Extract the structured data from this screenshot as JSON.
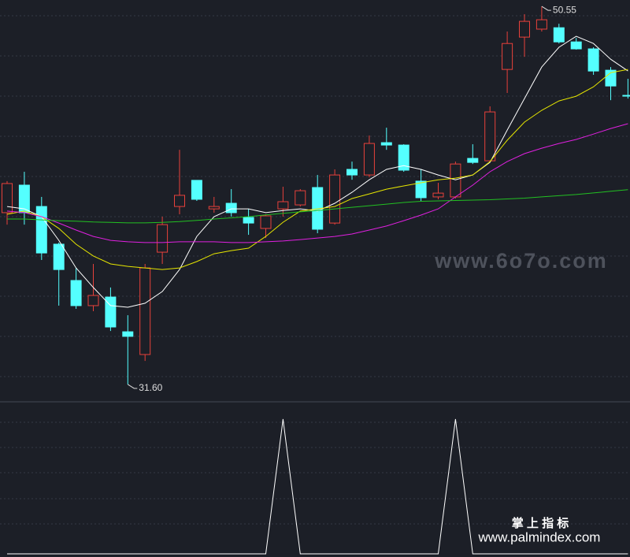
{
  "chart_data": [
    {
      "type": "candlestick",
      "open": [
        40.21,
        41.59,
        40.52,
        38.63,
        36.81,
        35.55,
        35.98,
        34.24,
        33.1,
        38.23,
        40.52,
        41.83,
        40.4,
        40.68,
        39.97,
        39.42,
        40.4,
        40.6,
        41.47,
        39.69,
        42.38,
        42.1,
        43.72,
        43.6,
        41.79,
        41.0,
        41.0,
        42.93,
        42.81,
        47.39,
        49.01,
        49.41,
        49.48,
        48.77,
        48.42,
        47.35,
        46.09
      ],
      "high": [
        41.79,
        42.26,
        41.0,
        38.71,
        37.44,
        37.64,
        36.46,
        35.07,
        37.64,
        40.01,
        43.36,
        41.83,
        41.0,
        41.39,
        40.4,
        40.13,
        41.51,
        41.39,
        42.1,
        42.38,
        42.77,
        44.08,
        44.47,
        43.64,
        42.38,
        41.71,
        42.77,
        43.64,
        45.54,
        49.29,
        50.16,
        50.55,
        49.68,
        48.97,
        48.5,
        47.51,
        46.92
      ],
      "low": [
        39.61,
        39.61,
        37.84,
        35.55,
        35.39,
        35.27,
        34.28,
        31.6,
        32.78,
        37.64,
        40.13,
        40.8,
        40.21,
        40.01,
        39.1,
        38.94,
        40.01,
        40.52,
        39.18,
        39.61,
        41.86,
        41.98,
        43.36,
        42.26,
        40.8,
        40.88,
        40.92,
        42.65,
        42.77,
        46.21,
        48.02,
        49.29,
        48.69,
        48.38,
        47.12,
        45.85,
        45.93
      ],
      "close": [
        41.67,
        40.21,
        38.19,
        37.36,
        35.55,
        36.06,
        34.48,
        34.01,
        37.44,
        39.61,
        41.08,
        40.88,
        40.52,
        40.21,
        39.69,
        40.05,
        40.76,
        41.31,
        39.38,
        42.1,
        42.1,
        43.68,
        43.6,
        42.34,
        40.96,
        41.19,
        42.65,
        42.73,
        45.26,
        48.69,
        49.8,
        49.88,
        48.77,
        48.42,
        47.31,
        46.56,
        46.05
      ],
      "up_color": "#e8413b",
      "down_color": "#54ffff",
      "series": [
        {
          "color": "#ffffff",
          "values": [
            40.52,
            40.4,
            40.01,
            38.82,
            37.44,
            36.46,
            35.55,
            35.47,
            35.67,
            36.26,
            37.36,
            39.02,
            40.01,
            40.4,
            40.4,
            40.21,
            40.32,
            40.4,
            40.29,
            40.68,
            41.23,
            41.86,
            42.38,
            42.57,
            42.38,
            42.1,
            41.86,
            42.1,
            42.73,
            44.35,
            45.93,
            47.51,
            48.5,
            49.05,
            48.69,
            47.9,
            47.31
          ]
        },
        {
          "color": "#e6e600",
          "values": [
            40.13,
            40.29,
            40.01,
            39.42,
            38.63,
            38.04,
            37.64,
            37.52,
            37.44,
            37.36,
            37.44,
            37.76,
            38.15,
            38.31,
            38.43,
            39.02,
            39.73,
            40.29,
            40.4,
            40.52,
            40.92,
            41.15,
            41.39,
            41.55,
            41.71,
            41.86,
            41.94,
            42.1,
            42.77,
            43.84,
            44.75,
            45.34,
            45.81,
            46.05,
            46.52,
            47.23,
            47.39
          ]
        },
        {
          "color": "#e020e0",
          "values": [
            40.29,
            40.21,
            40.01,
            39.69,
            39.34,
            39.02,
            38.82,
            38.75,
            38.71,
            38.71,
            38.75,
            38.75,
            38.75,
            38.71,
            38.71,
            38.75,
            38.79,
            38.86,
            38.94,
            39.02,
            39.14,
            39.34,
            39.54,
            39.81,
            40.09,
            40.4,
            41.0,
            41.59,
            42.26,
            42.77,
            43.17,
            43.44,
            43.68,
            43.88,
            44.15,
            44.43,
            44.67
          ]
        },
        {
          "color": "#22c022",
          "values": [
            39.89,
            39.89,
            39.85,
            39.81,
            39.78,
            39.74,
            39.72,
            39.7,
            39.7,
            39.72,
            39.76,
            39.82,
            39.89,
            39.95,
            40.01,
            40.1,
            40.18,
            40.25,
            40.32,
            40.4,
            40.48,
            40.56,
            40.64,
            40.72,
            40.78,
            40.8,
            40.82,
            40.84,
            40.86,
            40.9,
            40.94,
            41.0,
            41.06,
            41.12,
            41.2,
            41.28,
            41.36
          ]
        }
      ],
      "ylim": [
        30.73,
        50.87
      ],
      "max_label": "50.55",
      "min_label": "31.60",
      "watermark": "www.6o7o.com"
    },
    {
      "type": "line",
      "series": [
        {
          "color": "#ffffff",
          "values": [
            0,
            0,
            0,
            0,
            0,
            0,
            0,
            0,
            0,
            0,
            0,
            0,
            0,
            0,
            0,
            0,
            1,
            0,
            0,
            0,
            0,
            0,
            0,
            0,
            0,
            0,
            1,
            0,
            0,
            0,
            0,
            0,
            0,
            0,
            0,
            0,
            0
          ]
        }
      ],
      "ylim": [
        0,
        1
      ]
    }
  ],
  "footer": {
    "title": "掌 上 指 标",
    "url": "www.palmindex.com"
  }
}
